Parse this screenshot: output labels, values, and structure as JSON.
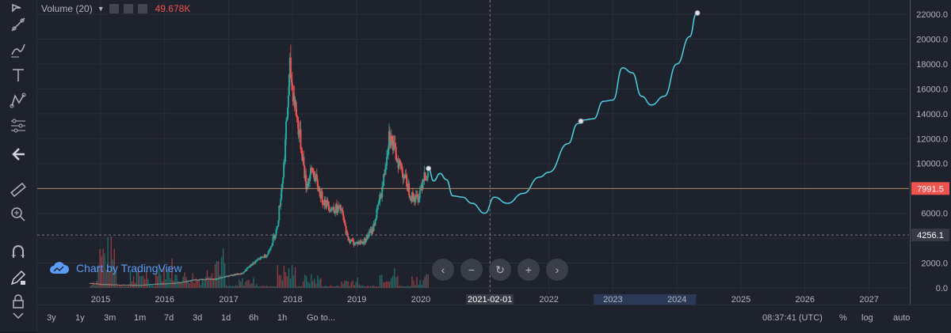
{
  "legend": {
    "indicator": "Volume (20)",
    "value": "49.678K",
    "value_color": "#ef5350"
  },
  "watermark": {
    "text": "Chart by TradingView"
  },
  "chart_data": {
    "type": "candlestick",
    "y_ticks": [
      0,
      2000,
      4000,
      6000,
      8000,
      10000,
      12000,
      14000,
      16000,
      18000,
      20000,
      22000
    ],
    "y_tick_labels": [
      "0.0",
      "2000.0",
      "4000.0",
      "6000.0",
      "8000.0",
      "10000.0",
      "12000.0",
      "14000.0",
      "16000.0",
      "18000.0",
      "20000.0",
      "22000.0"
    ],
    "ylim": [
      -250,
      22800
    ],
    "x_ticks": [
      "2015",
      "2016",
      "2017",
      "2018",
      "2019",
      "2020",
      "2021-02-01",
      "2022",
      "2023",
      "2024",
      "2025",
      "2026",
      "2027"
    ],
    "current_price": {
      "value": 7991.5,
      "label": "7991.5",
      "color": "#ef5350"
    },
    "crosshair_price": {
      "value": 4256.1,
      "label": "4256.1"
    },
    "crosshair_date": "2021-02-01",
    "price_history_path": [
      [
        2014.83,
        380
      ],
      [
        2015.0,
        310
      ],
      [
        2015.3,
        250
      ],
      [
        2015.6,
        240
      ],
      [
        2015.9,
        330
      ],
      [
        2016.2,
        410
      ],
      [
        2016.5,
        680
      ],
      [
        2016.8,
        720
      ],
      [
        2017.0,
        980
      ],
      [
        2017.2,
        1150
      ],
      [
        2017.4,
        2100
      ],
      [
        2017.6,
        2700
      ],
      [
        2017.75,
        4800
      ],
      [
        2017.85,
        9500
      ],
      [
        2017.95,
        17500
      ],
      [
        2018.05,
        14000
      ],
      [
        2018.15,
        10500
      ],
      [
        2018.2,
        8200
      ],
      [
        2018.3,
        9500
      ],
      [
        2018.45,
        7200
      ],
      [
        2018.6,
        6400
      ],
      [
        2018.75,
        6300
      ],
      [
        2018.85,
        4000
      ],
      [
        2018.95,
        3600
      ],
      [
        2019.1,
        3700
      ],
      [
        2019.25,
        4800
      ],
      [
        2019.4,
        8200
      ],
      [
        2019.5,
        12500
      ],
      [
        2019.58,
        11000
      ],
      [
        2019.7,
        9500
      ],
      [
        2019.85,
        7300
      ],
      [
        2019.95,
        7200
      ],
      [
        2020.05,
        9300
      ],
      [
        2020.12,
        8600
      ]
    ],
    "volume_profile": [
      [
        2015.0,
        300
      ],
      [
        2015.1,
        1500
      ],
      [
        2015.6,
        600
      ],
      [
        2016.0,
        900
      ],
      [
        2016.3,
        500
      ],
      [
        2016.6,
        400
      ],
      [
        2016.8,
        1200
      ],
      [
        2017.3,
        300
      ],
      [
        2017.9,
        700
      ],
      [
        2018.3,
        400
      ],
      [
        2018.9,
        300
      ],
      [
        2019.5,
        600
      ],
      [
        2020.0,
        400
      ]
    ],
    "projection": {
      "name": "",
      "color": "#4dd0e1",
      "points": [
        [
          2020.12,
          9600
        ],
        [
          2020.2,
          8600
        ],
        [
          2020.3,
          9200
        ],
        [
          2020.4,
          8700
        ],
        [
          2020.5,
          7400
        ],
        [
          2020.65,
          7300
        ],
        [
          2020.8,
          6800
        ],
        [
          2021.0,
          6000
        ],
        [
          2021.15,
          7300
        ],
        [
          2021.35,
          6800
        ],
        [
          2021.6,
          7600
        ],
        [
          2021.85,
          8900
        ],
        [
          2022.0,
          9300
        ],
        [
          2022.3,
          11600
        ],
        [
          2022.45,
          13200
        ],
        [
          2022.55,
          13500
        ],
        [
          2022.7,
          13600
        ],
        [
          2022.85,
          15000
        ],
        [
          2023.0,
          15100
        ],
        [
          2023.15,
          17700
        ],
        [
          2023.3,
          17300
        ],
        [
          2023.45,
          15400
        ],
        [
          2023.6,
          14700
        ],
        [
          2023.8,
          15400
        ],
        [
          2024.0,
          18000
        ],
        [
          2024.2,
          20200
        ],
        [
          2024.3,
          22000
        ]
      ],
      "markers": [
        [
          2020.12,
          9600
        ],
        [
          2022.5,
          13400
        ],
        [
          2024.32,
          22100
        ]
      ]
    },
    "highlight_range": [
      "2022.7",
      "2024.3"
    ]
  },
  "bottom_bar": {
    "ranges": [
      "3y",
      "1y",
      "3m",
      "1m",
      "7d",
      "3d",
      "1d",
      "6h",
      "1h",
      "Go to..."
    ],
    "time": "08:37:41 (UTC)",
    "toggles": [
      "%",
      "log",
      "auto"
    ]
  }
}
